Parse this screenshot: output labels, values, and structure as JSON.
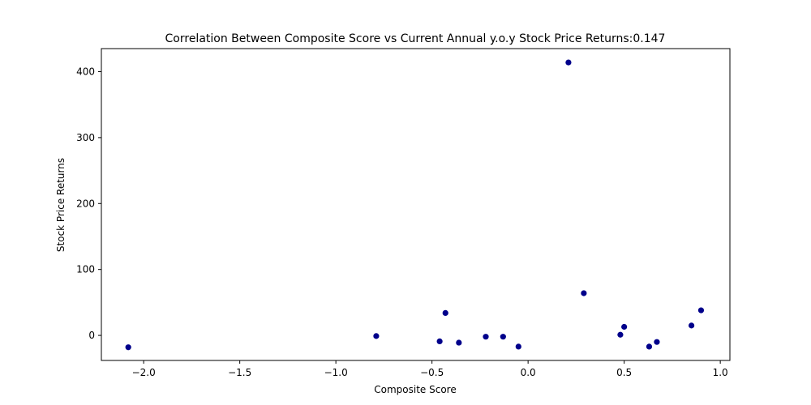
{
  "chart_data": {
    "type": "scatter",
    "title": "Correlation Between Composite Score vs Current Annual y.o.y Stock Price Returns:0.147",
    "xlabel": "Composite Score",
    "ylabel": "Stock Price Returns",
    "xlim": [
      -2.22,
      1.05
    ],
    "ylim": [
      -38,
      435
    ],
    "xticks": [
      -2.0,
      -1.5,
      -1.0,
      -0.5,
      0.0,
      0.5,
      1.0
    ],
    "xtick_labels": [
      "−2.0",
      "−1.5",
      "−1.0",
      "−0.5",
      "0.0",
      "0.5",
      "1.0"
    ],
    "yticks": [
      0,
      100,
      200,
      300,
      400
    ],
    "ytick_labels": [
      "0",
      "100",
      "200",
      "300",
      "400"
    ],
    "grid": false,
    "marker_color": "#00008b",
    "points": [
      {
        "x": -2.08,
        "y": -18
      },
      {
        "x": -0.79,
        "y": -1
      },
      {
        "x": -0.46,
        "y": -9
      },
      {
        "x": -0.43,
        "y": 34
      },
      {
        "x": -0.36,
        "y": -11
      },
      {
        "x": -0.22,
        "y": -2
      },
      {
        "x": -0.13,
        "y": -2
      },
      {
        "x": -0.05,
        "y": -17
      },
      {
        "x": 0.21,
        "y": 414
      },
      {
        "x": 0.29,
        "y": 64
      },
      {
        "x": 0.48,
        "y": 1
      },
      {
        "x": 0.5,
        "y": 13
      },
      {
        "x": 0.63,
        "y": -17
      },
      {
        "x": 0.67,
        "y": -10
      },
      {
        "x": 0.85,
        "y": 15
      },
      {
        "x": 0.9,
        "y": 38
      }
    ]
  }
}
